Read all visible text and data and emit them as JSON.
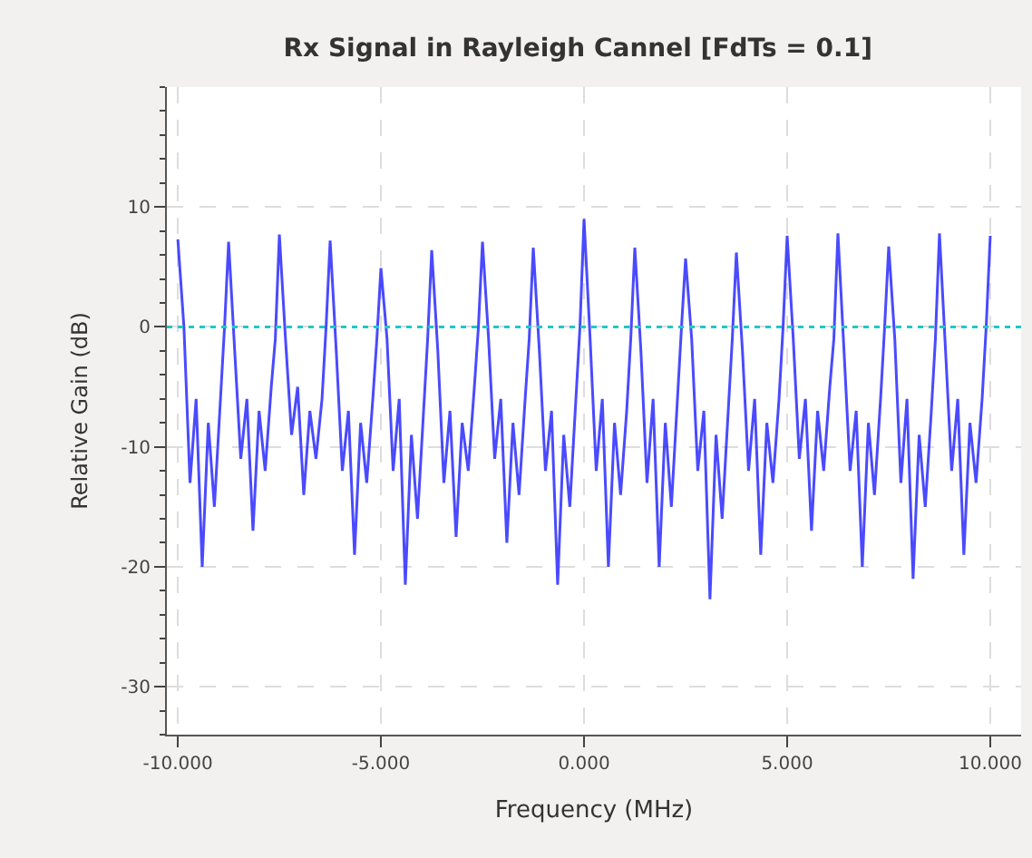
{
  "chart_data": {
    "type": "line",
    "title": "Rx Signal in Rayleigh Cannel [FdTs = 0.1]",
    "xlabel": "Frequency (MHz)",
    "ylabel": "Relative Gain (dB)",
    "xlim": [
      -10.27,
      10.76
    ],
    "ylim": [
      -34,
      20
    ],
    "xticks": [
      {
        "value": -10,
        "label": "-10.000"
      },
      {
        "value": -5,
        "label": "-5.000"
      },
      {
        "value": 0,
        "label": "0.000"
      },
      {
        "value": 5,
        "label": "5.000"
      },
      {
        "value": 10,
        "label": "10.000"
      }
    ],
    "yticks": [
      -30,
      -20,
      -10,
      0,
      10
    ],
    "grid": true,
    "line_style": "solid",
    "marker": "none",
    "ref_lines": [
      {
        "axis": "y",
        "value": 0,
        "color": "#20c8c8",
        "line_style": "dotted"
      }
    ],
    "series": [
      {
        "color": "#2b2bff",
        "x": [
          -10,
          -9.85,
          -9.7,
          -9.55,
          -9.4,
          -9.25,
          -9.1,
          -8.95,
          -8.85,
          -8.75,
          -8.6,
          -8.45,
          -8.3,
          -8.15,
          -8,
          -7.85,
          -7.7,
          -7.6,
          -7.5,
          -7.35,
          -7.2,
          -7.05,
          -6.9,
          -6.75,
          -6.6,
          -6.45,
          -6.35,
          -6.25,
          -6.1,
          -5.95,
          -5.8,
          -5.65,
          -5.5,
          -5.35,
          -5.2,
          -5.1,
          -5,
          -4.85,
          -4.7,
          -4.55,
          -4.4,
          -4.25,
          -4.1,
          -3.95,
          -3.85,
          -3.75,
          -3.6,
          -3.45,
          -3.3,
          -3.15,
          -3,
          -2.85,
          -2.7,
          -2.6,
          -2.5,
          -2.35,
          -2.2,
          -2.05,
          -1.9,
          -1.75,
          -1.6,
          -1.45,
          -1.35,
          -1.25,
          -1.1,
          -0.95,
          -0.8,
          -0.65,
          -0.5,
          -0.35,
          -0.2,
          -0.1,
          0,
          0.15,
          0.3,
          0.45,
          0.6,
          0.75,
          0.9,
          1.05,
          1.15,
          1.25,
          1.4,
          1.55,
          1.7,
          1.85,
          2,
          2.15,
          2.3,
          2.4,
          2.5,
          2.65,
          2.8,
          2.95,
          3.1,
          3.25,
          3.4,
          3.55,
          3.65,
          3.75,
          3.9,
          4.05,
          4.2,
          4.35,
          4.5,
          4.65,
          4.8,
          4.9,
          5,
          5.15,
          5.3,
          5.45,
          5.6,
          5.75,
          5.9,
          6.05,
          6.15,
          6.25,
          6.4,
          6.55,
          6.7,
          6.85,
          7,
          7.15,
          7.3,
          7.4,
          7.5,
          7.65,
          7.8,
          7.95,
          8.1,
          8.25,
          8.4,
          8.55,
          8.65,
          8.75,
          8.9,
          9.05,
          9.2,
          9.35,
          9.5,
          9.65,
          9.8,
          9.9,
          10
        ],
        "values": [
          7.3,
          0,
          -13,
          -6,
          -20,
          -8,
          -15,
          -6,
          0,
          7.1,
          -2,
          -11,
          -6,
          -17,
          -7,
          -12,
          -5,
          -1,
          7.7,
          -1,
          -9,
          -5,
          -14,
          -7,
          -11,
          -6,
          0,
          7.2,
          -2,
          -12,
          -7,
          -19,
          -8,
          -13,
          -6,
          -1,
          4.9,
          -1,
          -12,
          -6,
          -21.5,
          -9,
          -16,
          -7,
          -1,
          6.4,
          -2,
          -13,
          -7,
          -17.5,
          -8,
          -12,
          -5,
          0,
          7.1,
          -1,
          -11,
          -6,
          -18,
          -8,
          -14,
          -6,
          -1,
          6.6,
          -2,
          -12,
          -7,
          -21.5,
          -9,
          -15,
          -6,
          0,
          9.0,
          -1,
          -12,
          -6,
          -20,
          -8,
          -14,
          -7,
          -1,
          6.6,
          -2,
          -13,
          -6,
          -20,
          -8,
          -15,
          -6,
          0,
          5.7,
          -1,
          -12,
          -7,
          -22.7,
          -9,
          -16,
          -7,
          -1,
          6.2,
          -2,
          -12,
          -6,
          -19,
          -8,
          -13,
          -6,
          0,
          7.6,
          -1,
          -11,
          -6,
          -17,
          -7,
          -12,
          -5,
          -1,
          7.8,
          -2,
          -12,
          -7,
          -20,
          -8,
          -14,
          -6,
          0,
          6.7,
          -1,
          -13,
          -6,
          -21,
          -9,
          -15,
          -7,
          -1,
          7.8,
          -2,
          -12,
          -6,
          -19,
          -8,
          -13,
          -6,
          0,
          7.6
        ]
      }
    ]
  }
}
